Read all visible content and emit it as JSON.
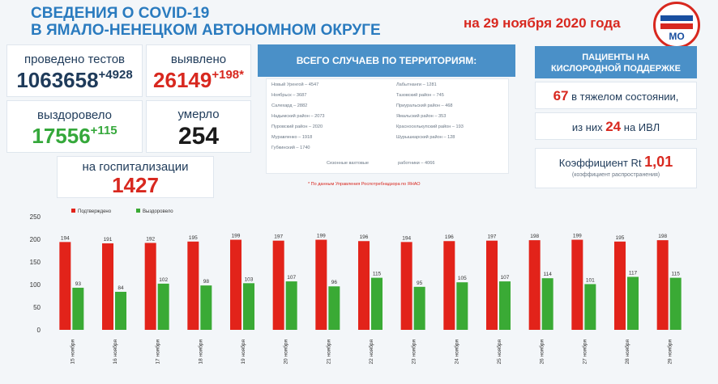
{
  "header": {
    "title_line1": "СВЕДЕНИЯ О COVID-19",
    "title_line2": "В ЯМАЛО-НЕНЕЦКОМ АВТОНОМНОМ ОКРУГЕ",
    "date": "на 29 ноября 2020 года",
    "logo_text": "МО"
  },
  "stats": {
    "tests_label": "проведено тестов",
    "tests_value": "1063658",
    "tests_delta": "+4928",
    "detected_label": "выявлено",
    "detected_value": "26149",
    "detected_delta": "+198*",
    "recovered_label": "выздоровело",
    "recovered_value": "17556",
    "recovered_delta": "+115",
    "died_label": "умерло",
    "died_value": "254",
    "hospital_label": "на госпитализации",
    "hospital_value": "1427"
  },
  "territories": {
    "title": "ВСЕГО СЛУЧАЕВ ПО ТЕРРИТОРИЯМ:",
    "left": [
      "Новый Уренгой – 4547",
      "Ноябрьск – 3687",
      "Салехард – 2882",
      "Надымский район – 2073",
      "Пуровский район – 2020",
      "Муравленко – 1918",
      "Губкинский – 1740"
    ],
    "right": [
      "Лабытнанги – 1281",
      "Тазовский район – 745",
      "Приуральский район – 468",
      "Ямальский район – 353",
      "Красноселькупский район – 193",
      "Шурышкарский район – 128",
      ""
    ],
    "extra_left": "Сезонные вахтовые",
    "extra_right": "работники – 4066",
    "note": "* По данным Управления Роспотребнадзора по ЯНАО"
  },
  "oxygen": {
    "title_line1": "ПАЦИЕНТЫ НА",
    "title_line2": "КИСЛОРОДНОЙ ПОДДЕРЖКЕ",
    "severe_value": "67",
    "severe_label": "в тяжелом состоянии,",
    "ivl_prefix": "из них",
    "ivl_value": "24",
    "ivl_label": "на  ИВЛ",
    "rt_label": "Коэффициент Rt",
    "rt_value": "1,01",
    "rt_sub": "(коэффициент распространения)"
  },
  "chart_data": {
    "type": "bar",
    "categories": [
      "15 ноября",
      "16 ноября",
      "17 ноября",
      "18 ноября",
      "19 ноября",
      "20 ноября",
      "21 ноября",
      "22 ноября",
      "23 ноября",
      "24 ноября",
      "25 ноября",
      "26 ноября",
      "27 ноября",
      "28 ноября",
      "29 ноября"
    ],
    "series": [
      {
        "name": "Подтверждено",
        "color": "#e2231a",
        "values": [
          194,
          191,
          192,
          195,
          199,
          197,
          199,
          196,
          194,
          196,
          197,
          198,
          199,
          195,
          198
        ]
      },
      {
        "name": "Выздоровело",
        "color": "#3aaa35",
        "values": [
          93,
          84,
          102,
          98,
          103,
          107,
          96,
          115,
          95,
          105,
          107,
          114,
          101,
          117,
          115
        ]
      }
    ],
    "ylim": [
      0,
      250
    ],
    "yticks": [
      0,
      50,
      100,
      150,
      200,
      250
    ],
    "legend": "top-left",
    "grid": false
  }
}
